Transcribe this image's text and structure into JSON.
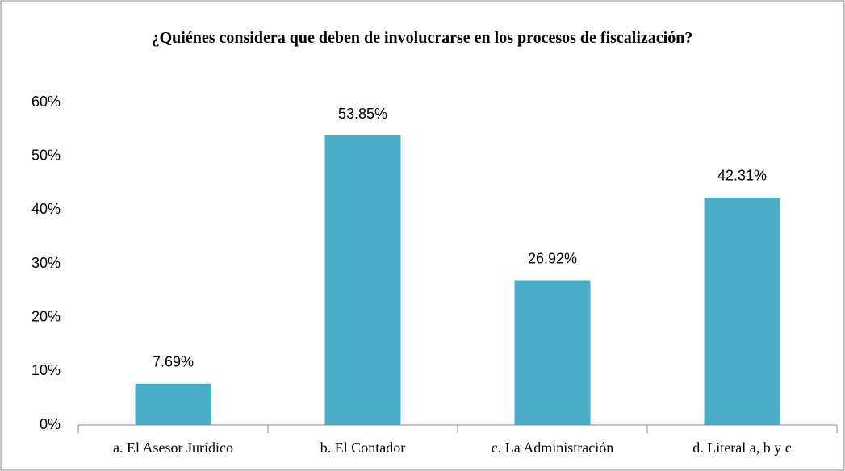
{
  "chart_data": {
    "type": "bar",
    "title": "¿Quiénes considera que deben de involucrarse en los procesos de fiscalización?",
    "categories": [
      "a. El Asesor Jurídico",
      "b. El Contador",
      "c. La Administración",
      "d. Literal a, b y c"
    ],
    "values": [
      7.69,
      53.85,
      26.92,
      42.31
    ],
    "value_labels": [
      "7.69%",
      "53.85%",
      "26.92%",
      "42.31%"
    ],
    "color": "#4bacc6",
    "ylim": [
      0,
      60
    ],
    "yticks": [
      {
        "value": 0,
        "label": "0%"
      },
      {
        "value": 10,
        "label": "10%"
      },
      {
        "value": 20,
        "label": "20%"
      },
      {
        "value": 30,
        "label": "30%"
      },
      {
        "value": 40,
        "label": "40%"
      },
      {
        "value": 50,
        "label": "50%"
      },
      {
        "value": 60,
        "label": "60%"
      }
    ],
    "grid": false
  }
}
